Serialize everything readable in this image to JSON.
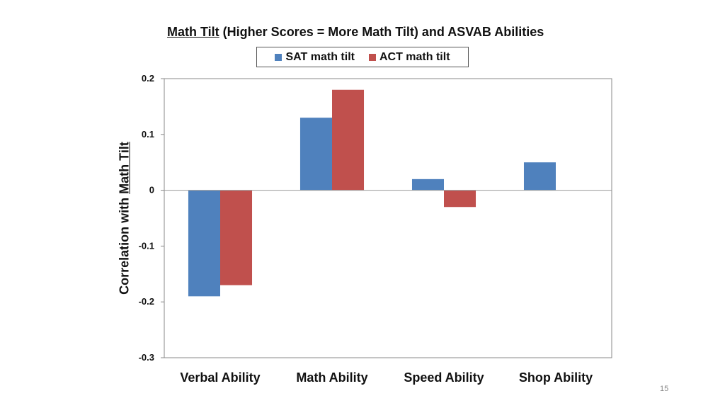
{
  "colors": {
    "sat": "#4f81bd",
    "act": "#c0504d"
  },
  "title_parts": {
    "underlined": "Math Tilt",
    "rest": " (Higher Scores = More Math Tilt) and ASVAB Abilities"
  },
  "ylabel_parts": {
    "before": "Correlation with ",
    "underlined": "Math Tilt"
  },
  "page_number": "15",
  "chart_data": {
    "type": "bar",
    "title": "Math Tilt (Higher Scores = More Math Tilt) and ASVAB Abilities",
    "xlabel": "",
    "ylabel": "Correlation with Math Tilt",
    "categories": [
      "Verbal Ability",
      "Math Ability",
      "Speed Ability",
      "Shop Ability"
    ],
    "series": [
      {
        "name": "SAT math tilt",
        "values": [
          -0.19,
          0.13,
          0.02,
          0.05
        ]
      },
      {
        "name": "ACT math tilt",
        "values": [
          -0.17,
          0.18,
          -0.03,
          null
        ]
      }
    ],
    "ylim": [
      -0.3,
      0.2
    ],
    "yticks": [
      0.2,
      0.1,
      0,
      -0.1,
      -0.2,
      -0.3
    ],
    "ytick_labels": [
      "0.2",
      "0.1",
      "0",
      "-0.1",
      "-0.2",
      "-0.3"
    ],
    "legend": "top",
    "grid": false
  }
}
